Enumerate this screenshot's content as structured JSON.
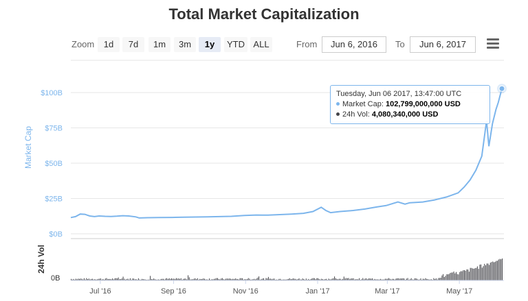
{
  "title": "Total Market Capitalization",
  "toolbar": {
    "zoom_label": "Zoom",
    "zoom_buttons": [
      "1d",
      "7d",
      "1m",
      "3m",
      "1y",
      "YTD",
      "ALL"
    ],
    "active_zoom": "1y",
    "from_label": "From",
    "from_value": "Jun 6, 2016",
    "to_label": "To",
    "to_value": "Jun 6, 2017"
  },
  "tooltip": {
    "date": "Tuesday, Jun 06 2017, 13:47:00 UTC",
    "mcap_label": "Market Cap:",
    "mcap_value": "102,799,000,000 USD",
    "vol_label": "24h Vol:",
    "vol_value": "4,080,340,000 USD"
  },
  "colors": {
    "series": "#7cb5ec",
    "volume": "#434348",
    "grid": "#e6e6e6",
    "axis_label": "#7cb5ec"
  },
  "chart_data": {
    "type": "line",
    "ylabel": "Market Cap",
    "y_ticks": [
      "$0B",
      "$25B",
      "$50B",
      "$75B",
      "$100B"
    ],
    "ylim": [
      0,
      100
    ],
    "x_ticks": [
      "Jul '16",
      "Sep '16",
      "Nov '16",
      "Jan '17",
      "Mar '17",
      "May '17"
    ],
    "grid": true,
    "series": [
      {
        "values": [
          [
            "2016-06-06",
            11.5
          ],
          [
            "2016-06-10",
            12.2
          ],
          [
            "2016-06-14",
            14.0
          ],
          [
            "2016-06-18",
            13.8
          ],
          [
            "2016-06-22",
            12.6
          ],
          [
            "2016-06-26",
            12.2
          ],
          [
            "2016-06-30",
            12.6
          ],
          [
            "2016-07-05",
            12.4
          ],
          [
            "2016-07-10",
            12.3
          ],
          [
            "2016-07-15",
            12.5
          ],
          [
            "2016-07-20",
            12.8
          ],
          [
            "2016-07-25",
            12.6
          ],
          [
            "2016-07-31",
            12.0
          ],
          [
            "2016-08-03",
            11.2
          ],
          [
            "2016-08-10",
            11.4
          ],
          [
            "2016-08-20",
            11.5
          ],
          [
            "2016-08-31",
            11.6
          ],
          [
            "2016-09-10",
            11.8
          ],
          [
            "2016-09-20",
            11.9
          ],
          [
            "2016-09-30",
            12.0
          ],
          [
            "2016-10-10",
            12.2
          ],
          [
            "2016-10-20",
            12.4
          ],
          [
            "2016-10-31",
            13.0
          ],
          [
            "2016-11-10",
            13.3
          ],
          [
            "2016-11-20",
            13.2
          ],
          [
            "2016-11-30",
            13.6
          ],
          [
            "2016-12-10",
            14.0
          ],
          [
            "2016-12-20",
            14.5
          ],
          [
            "2016-12-28",
            15.8
          ],
          [
            "2017-01-04",
            18.8
          ],
          [
            "2017-01-08",
            16.5
          ],
          [
            "2017-01-12",
            15.0
          ],
          [
            "2017-01-20",
            15.8
          ],
          [
            "2017-01-31",
            16.5
          ],
          [
            "2017-02-10",
            17.5
          ],
          [
            "2017-02-20",
            19.0
          ],
          [
            "2017-02-28",
            20.0
          ],
          [
            "2017-03-10",
            22.5
          ],
          [
            "2017-03-16",
            21.0
          ],
          [
            "2017-03-20",
            22.0
          ],
          [
            "2017-03-31",
            22.5
          ],
          [
            "2017-04-10",
            24.0
          ],
          [
            "2017-04-20",
            26.0
          ],
          [
            "2017-04-30",
            29.0
          ],
          [
            "2017-05-05",
            33.0
          ],
          [
            "2017-05-10",
            38.0
          ],
          [
            "2017-05-15",
            45.0
          ],
          [
            "2017-05-20",
            55.0
          ],
          [
            "2017-05-24",
            80.0
          ],
          [
            "2017-05-26",
            62.0
          ],
          [
            "2017-05-29",
            78.0
          ],
          [
            "2017-06-01",
            88.0
          ],
          [
            "2017-06-03",
            93.0
          ],
          [
            "2017-06-06",
            102.8
          ]
        ]
      }
    ],
    "volume": {
      "label": "24h Vol",
      "ticks": [
        "0B"
      ]
    }
  }
}
